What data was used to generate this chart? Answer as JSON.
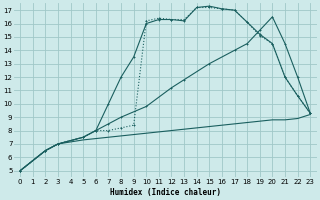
{
  "xlabel": "Humidex (Indice chaleur)",
  "bg_color": "#ceeaea",
  "grid_color": "#a0c8c8",
  "line_color": "#1a5f5f",
  "xlim": [
    -0.5,
    23.5
  ],
  "ylim": [
    4.5,
    17.5
  ],
  "xticks": [
    0,
    1,
    2,
    3,
    4,
    5,
    6,
    7,
    8,
    9,
    10,
    11,
    12,
    13,
    14,
    15,
    16,
    17,
    18,
    19,
    20,
    21,
    22,
    23
  ],
  "yticks": [
    5,
    6,
    7,
    8,
    9,
    10,
    11,
    12,
    13,
    14,
    15,
    16,
    17
  ],
  "curve_dotted_x": [
    0,
    2,
    3,
    5,
    6,
    7,
    8,
    9,
    10,
    11,
    12,
    13,
    14,
    15,
    16,
    17,
    18,
    19,
    20,
    21,
    22,
    23
  ],
  "curve_dotted_y": [
    5,
    6.5,
    7.0,
    7.5,
    8.0,
    8.0,
    8.2,
    8.4,
    16.2,
    16.4,
    16.3,
    16.3,
    17.2,
    17.2,
    17.1,
    17.0,
    16.1,
    15.1,
    14.5,
    12.0,
    10.6,
    9.3
  ],
  "curve_steep_x": [
    0,
    2,
    3,
    5,
    6,
    7,
    8,
    9,
    10,
    11,
    12,
    13,
    14,
    15,
    16,
    17,
    18,
    19,
    20,
    21,
    22,
    23
  ],
  "curve_steep_y": [
    5,
    6.5,
    7.0,
    7.5,
    8.0,
    10.0,
    12.0,
    13.5,
    16.0,
    16.3,
    16.3,
    16.2,
    17.2,
    17.3,
    17.1,
    17.0,
    16.1,
    15.2,
    14.5,
    12.0,
    10.6,
    9.3
  ],
  "curve_diag_x": [
    0,
    2,
    3,
    5,
    7,
    8,
    10,
    12,
    13,
    15,
    17,
    18,
    19,
    20,
    21,
    22,
    23
  ],
  "curve_diag_y": [
    5,
    6.5,
    7.0,
    7.5,
    8.5,
    9.0,
    9.8,
    11.2,
    11.8,
    13.0,
    14.0,
    14.5,
    15.5,
    16.5,
    14.5,
    12.0,
    9.3
  ],
  "curve_flat_x": [
    0,
    2,
    3,
    5,
    6,
    7,
    8,
    9,
    10,
    11,
    12,
    13,
    14,
    15,
    16,
    17,
    18,
    19,
    20,
    21,
    22,
    23
  ],
  "curve_flat_y": [
    5,
    6.5,
    7.0,
    7.3,
    7.4,
    7.5,
    7.6,
    7.7,
    7.8,
    7.9,
    8.0,
    8.1,
    8.2,
    8.3,
    8.4,
    8.5,
    8.6,
    8.7,
    8.8,
    8.8,
    8.9,
    9.2
  ]
}
